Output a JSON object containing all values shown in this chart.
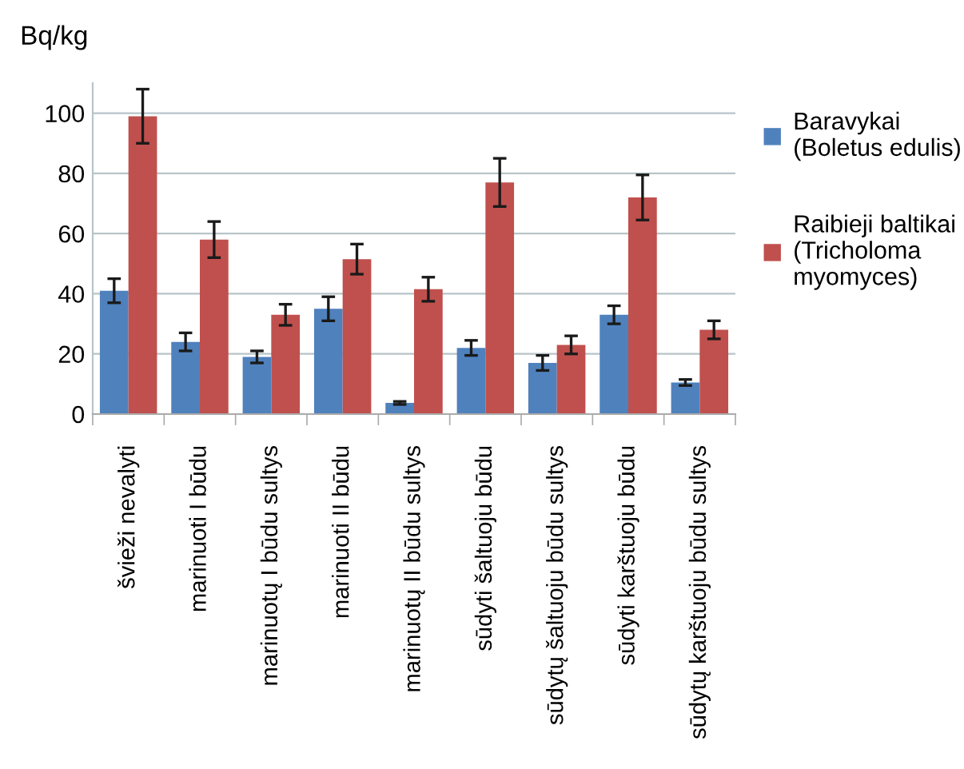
{
  "chart_data": {
    "type": "bar",
    "ylabel": "Bq/kg",
    "categories": [
      "švieži nevalyti",
      "marinuoti I būdu",
      "marinuotų I būdu sultys",
      "marinuoti II būdu",
      "marinuotų II būdu sultys",
      "sūdyti šaltuoju būdu",
      "sūdytų šaltuoju būdu sultys",
      "sūdyti karštuoju būdu",
      "sūdytų karštuoju būdu sultys"
    ],
    "series": [
      {
        "name": "Baravykai\n(Boletus edulis)",
        "color": "#4f81bd",
        "values": [
          41,
          24,
          19,
          35,
          3.7,
          22,
          17,
          33,
          10.5
        ],
        "errors": [
          4,
          3,
          2,
          4,
          0.5,
          2.5,
          2.5,
          3,
          1
        ]
      },
      {
        "name": "Raibieji baltikai\n(Tricholoma\nmyomyces)",
        "color": "#c0504d",
        "values": [
          99,
          58,
          33,
          51.5,
          41.5,
          77,
          23,
          72,
          28
        ],
        "errors": [
          9,
          6,
          3.5,
          5,
          4,
          8,
          3,
          7.5,
          3
        ]
      }
    ],
    "ylim": [
      0,
      110
    ],
    "yticks": [
      0,
      20,
      40,
      60,
      80,
      100
    ],
    "grid": "y",
    "legend": "right"
  }
}
